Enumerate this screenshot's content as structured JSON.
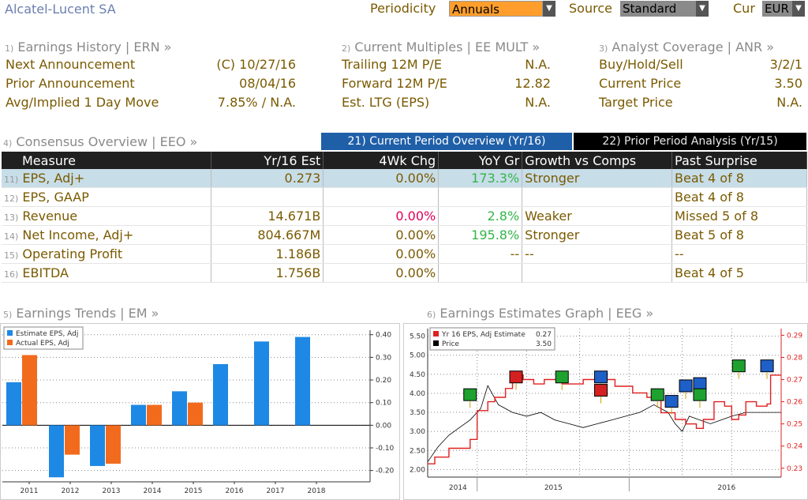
{
  "header": {
    "title": "Alcatel-Lucent SA",
    "periodicity_label": "Periodicity",
    "periodicity_value": "Annuals",
    "source_label": "Source",
    "source_value": "Standard",
    "currency_label": "Cur",
    "currency_value": "EUR"
  },
  "earnings_history": {
    "num": "1)",
    "title": "Earnings History | ERN »",
    "rows": [
      {
        "key": "Next Announcement",
        "val": "(C)  10/27/16"
      },
      {
        "key": "Prior Announcement",
        "val": "08/04/16"
      },
      {
        "key": "Avg/Implied 1 Day Move",
        "val": "7.85% / N.A."
      }
    ]
  },
  "current_multiples": {
    "num": "2)",
    "title": "Current Multiples | EE MULT »",
    "rows": [
      {
        "key": "Trailing 12M P/E",
        "val": "N.A."
      },
      {
        "key": "Forward 12M P/E",
        "val": "12.82"
      },
      {
        "key": "Est. LTG (EPS)",
        "val": "N.A."
      }
    ]
  },
  "analyst_coverage": {
    "num": "3)",
    "title": "Analyst Coverage | ANR »",
    "rows": [
      {
        "key": "Buy/Hold/Sell",
        "val": "3/2/1"
      },
      {
        "key": "Current Price",
        "val": "3.50"
      },
      {
        "key": "Target Price",
        "val": "N.A."
      }
    ]
  },
  "consensus": {
    "num": "4)",
    "title": "Consensus Overview | EEO »",
    "tab_current": "21) Current Period Overview (Yr/16)",
    "tab_prior": "22) Prior Period Analysis (Yr/15)",
    "columns": [
      "Measure",
      "Yr/16 Est",
      "4Wk Chg",
      "YoY Gr",
      "Growth vs Comps",
      "Past Surprise"
    ],
    "rows": [
      {
        "num": "11)",
        "measure": "EPS, Adj+",
        "est": "0.273",
        "chg": "0.00%",
        "chg_color": "",
        "yoy": "173.3%",
        "yoy_color": "green",
        "comps": "Stronger",
        "surprise": "Beat 4 of 8"
      },
      {
        "num": "12)",
        "measure": "EPS, GAAP",
        "est": "",
        "chg": "",
        "chg_color": "",
        "yoy": "",
        "yoy_color": "",
        "comps": "",
        "surprise": "Beat 4 of 8"
      },
      {
        "num": "13)",
        "measure": "Revenue",
        "est": "14.671B",
        "chg": "0.00%",
        "chg_color": "red",
        "yoy": "2.8%",
        "yoy_color": "green",
        "comps": "Weaker",
        "surprise": "Missed 5 of 8"
      },
      {
        "num": "14)",
        "measure": "Net Income, Adj+",
        "est": "804.667M",
        "chg": "0.00%",
        "chg_color": "",
        "yoy": "195.8%",
        "yoy_color": "green",
        "comps": "Stronger",
        "surprise": "Beat 5 of 8"
      },
      {
        "num": "15)",
        "measure": "Operating Profit",
        "est": "1.186B",
        "chg": "0.00%",
        "chg_color": "",
        "yoy": "--",
        "yoy_color": "",
        "comps": "--",
        "surprise": "--"
      },
      {
        "num": "16)",
        "measure": "EBITDA",
        "est": "1.756B",
        "chg": "0.00%",
        "chg_color": "",
        "yoy": "",
        "yoy_color": "",
        "comps": "",
        "surprise": "Beat 4 of 5"
      }
    ]
  },
  "earnings_trends": {
    "num": "5)",
    "title": "Earnings Trends | EM »"
  },
  "earnings_graph": {
    "num": "6)",
    "title": "Earnings Estimates Graph | EEG »"
  },
  "colors": {
    "estimate": "#1e88e5",
    "actual": "#f26b1d",
    "estimate_line": "#e02020",
    "price_line": "#000000"
  },
  "chart_data": [
    {
      "type": "bar",
      "categories": [
        "2011",
        "2012",
        "2013",
        "2014",
        "2015",
        "2016",
        "2017",
        "2018"
      ],
      "series": [
        {
          "name": "Estimate EPS, Adj",
          "values": [
            0.19,
            -0.23,
            -0.18,
            0.09,
            0.15,
            0.27,
            0.37,
            0.39
          ]
        },
        {
          "name": "Actual EPS, Adj",
          "values": [
            0.31,
            -0.13,
            -0.17,
            0.09,
            0.1,
            null,
            null,
            null
          ]
        }
      ],
      "yticks": [
        "0.40",
        "0.30",
        "0.20",
        "0.10",
        "0.00",
        "-0.10",
        "-0.20"
      ],
      "ylim": [
        -0.25,
        0.42
      ],
      "legend": "top-left"
    },
    {
      "type": "line",
      "legend": [
        {
          "name": "Yr 16 EPS, Adj Estimate",
          "value": "0.27"
        },
        {
          "name": "Price",
          "value": "3.50"
        }
      ],
      "x_labels": [
        "2014",
        "2015",
        "2016"
      ],
      "left_ticks": [
        "5.50",
        "5.00",
        "4.50",
        "4.00",
        "3.50",
        "3.00",
        "2.50",
        "2.00"
      ],
      "right_ticks": [
        "0.29",
        "0.28",
        "0.27",
        "0.26",
        "0.25",
        "0.24",
        "0.23"
      ],
      "left_ylim": [
        1.8,
        5.7
      ],
      "right_ylim": [
        0.226,
        0.293
      ],
      "estimate_series": [
        [
          0.0,
          0.232
        ],
        [
          0.02,
          0.235
        ],
        [
          0.05,
          0.235
        ],
        [
          0.06,
          0.239
        ],
        [
          0.1,
          0.239
        ],
        [
          0.12,
          0.243
        ],
        [
          0.14,
          0.256
        ],
        [
          0.17,
          0.26
        ],
        [
          0.19,
          0.262
        ],
        [
          0.22,
          0.266
        ],
        [
          0.24,
          0.272
        ],
        [
          0.27,
          0.27
        ],
        [
          0.3,
          0.268
        ],
        [
          0.33,
          0.27
        ],
        [
          0.38,
          0.268
        ],
        [
          0.44,
          0.27
        ],
        [
          0.5,
          0.27
        ],
        [
          0.53,
          0.267
        ],
        [
          0.58,
          0.264
        ],
        [
          0.62,
          0.262
        ],
        [
          0.66,
          0.255
        ],
        [
          0.7,
          0.252
        ],
        [
          0.73,
          0.25
        ],
        [
          0.76,
          0.248
        ],
        [
          0.78,
          0.252
        ],
        [
          0.81,
          0.26
        ],
        [
          0.84,
          0.258
        ],
        [
          0.86,
          0.252
        ],
        [
          0.88,
          0.254
        ],
        [
          0.9,
          0.26
        ],
        [
          0.93,
          0.258
        ],
        [
          0.96,
          0.259
        ],
        [
          0.97,
          0.272
        ],
        [
          1.0,
          0.272
        ]
      ],
      "price_series": [
        [
          0.0,
          2.2
        ],
        [
          0.03,
          2.6
        ],
        [
          0.06,
          2.9
        ],
        [
          0.09,
          3.1
        ],
        [
          0.12,
          3.3
        ],
        [
          0.15,
          3.6
        ],
        [
          0.17,
          4.2
        ],
        [
          0.2,
          3.7
        ],
        [
          0.24,
          3.5
        ],
        [
          0.28,
          3.4
        ],
        [
          0.32,
          3.5
        ],
        [
          0.36,
          3.3
        ],
        [
          0.4,
          3.2
        ],
        [
          0.44,
          3.1
        ],
        [
          0.48,
          3.2
        ],
        [
          0.52,
          3.3
        ],
        [
          0.56,
          3.4
        ],
        [
          0.6,
          3.5
        ],
        [
          0.64,
          3.7
        ],
        [
          0.68,
          3.5
        ],
        [
          0.7,
          3.2
        ],
        [
          0.72,
          3.0
        ],
        [
          0.74,
          3.4
        ],
        [
          0.77,
          3.3
        ],
        [
          0.8,
          3.2
        ],
        [
          0.83,
          3.3
        ],
        [
          0.86,
          3.4
        ],
        [
          0.9,
          3.5
        ],
        [
          0.95,
          3.5
        ],
        [
          1.0,
          3.5
        ]
      ],
      "markers": [
        {
          "x": 0.12,
          "y": 0.263,
          "kind": "green"
        },
        {
          "x": 0.25,
          "y": 0.271,
          "kind": "red"
        },
        {
          "x": 0.38,
          "y": 0.271,
          "kind": "green"
        },
        {
          "x": 0.49,
          "y": 0.271,
          "kind": "blue"
        },
        {
          "x": 0.49,
          "y": 0.265,
          "kind": "red"
        },
        {
          "x": 0.65,
          "y": 0.263,
          "kind": "green"
        },
        {
          "x": 0.69,
          "y": 0.26,
          "kind": "blue"
        },
        {
          "x": 0.73,
          "y": 0.267,
          "kind": "blue"
        },
        {
          "x": 0.77,
          "y": 0.268,
          "kind": "blue"
        },
        {
          "x": 0.77,
          "y": 0.263,
          "kind": "green"
        },
        {
          "x": 0.88,
          "y": 0.276,
          "kind": "green"
        },
        {
          "x": 0.96,
          "y": 0.276,
          "kind": "blue"
        }
      ]
    }
  ]
}
